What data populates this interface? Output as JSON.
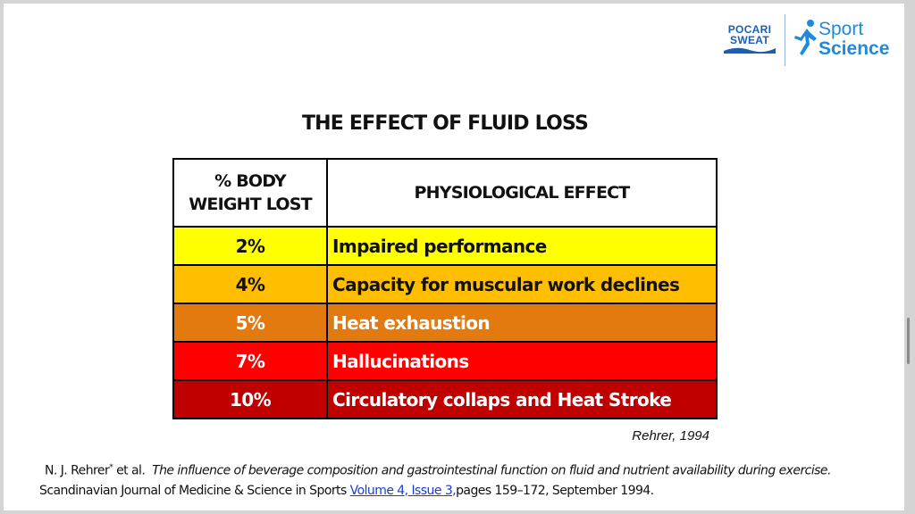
{
  "logo": {
    "brand_line1": "POCARI",
    "brand_line2": "SWEAT",
    "sport": "Sport",
    "science": "Science",
    "colors": {
      "pocari_blue": "#1b5fb4",
      "sport_blue": "#1f8ad9"
    }
  },
  "title": "THE EFFECT OF FLUID LOSS",
  "table": {
    "headers": {
      "col1_line1": "% BODY",
      "col1_line2": "WEIGHT LOST",
      "col2": "PHYSIOLOGICAL EFFECT"
    },
    "rows": [
      {
        "percent": "2%",
        "effect": "Impaired performance",
        "bg": "#ffff00",
        "fg": "#111111"
      },
      {
        "percent": "4%",
        "effect": "Capacity for muscular work declines",
        "bg": "#ffbf00",
        "fg": "#111111"
      },
      {
        "percent": "5%",
        "effect": "Heat exhaustion",
        "bg": "#e27a10",
        "fg": "#ffffff"
      },
      {
        "percent": "7%",
        "effect": "Hallucinations",
        "bg": "#ff0000",
        "fg": "#ffffff"
      },
      {
        "percent": "10%",
        "effect": "Circulatory collaps and Heat Stroke",
        "bg": "#c00000",
        "fg": "#ffffff"
      }
    ]
  },
  "source_note": "Rehrer, 1994",
  "citation": {
    "authors": "N. J. Rehrer",
    "author_mark": "*",
    "etal": "et al.",
    "article_title": "The influence of beverage composition and gastrointestinal function on fluid and nutrient availability during exercise.",
    "journal": "Scandinavian Journal of Medicine & Science in Sports",
    "volume_link": "Volume 4, Issue 3,",
    "pages": "pages 159–172, September 1994."
  }
}
